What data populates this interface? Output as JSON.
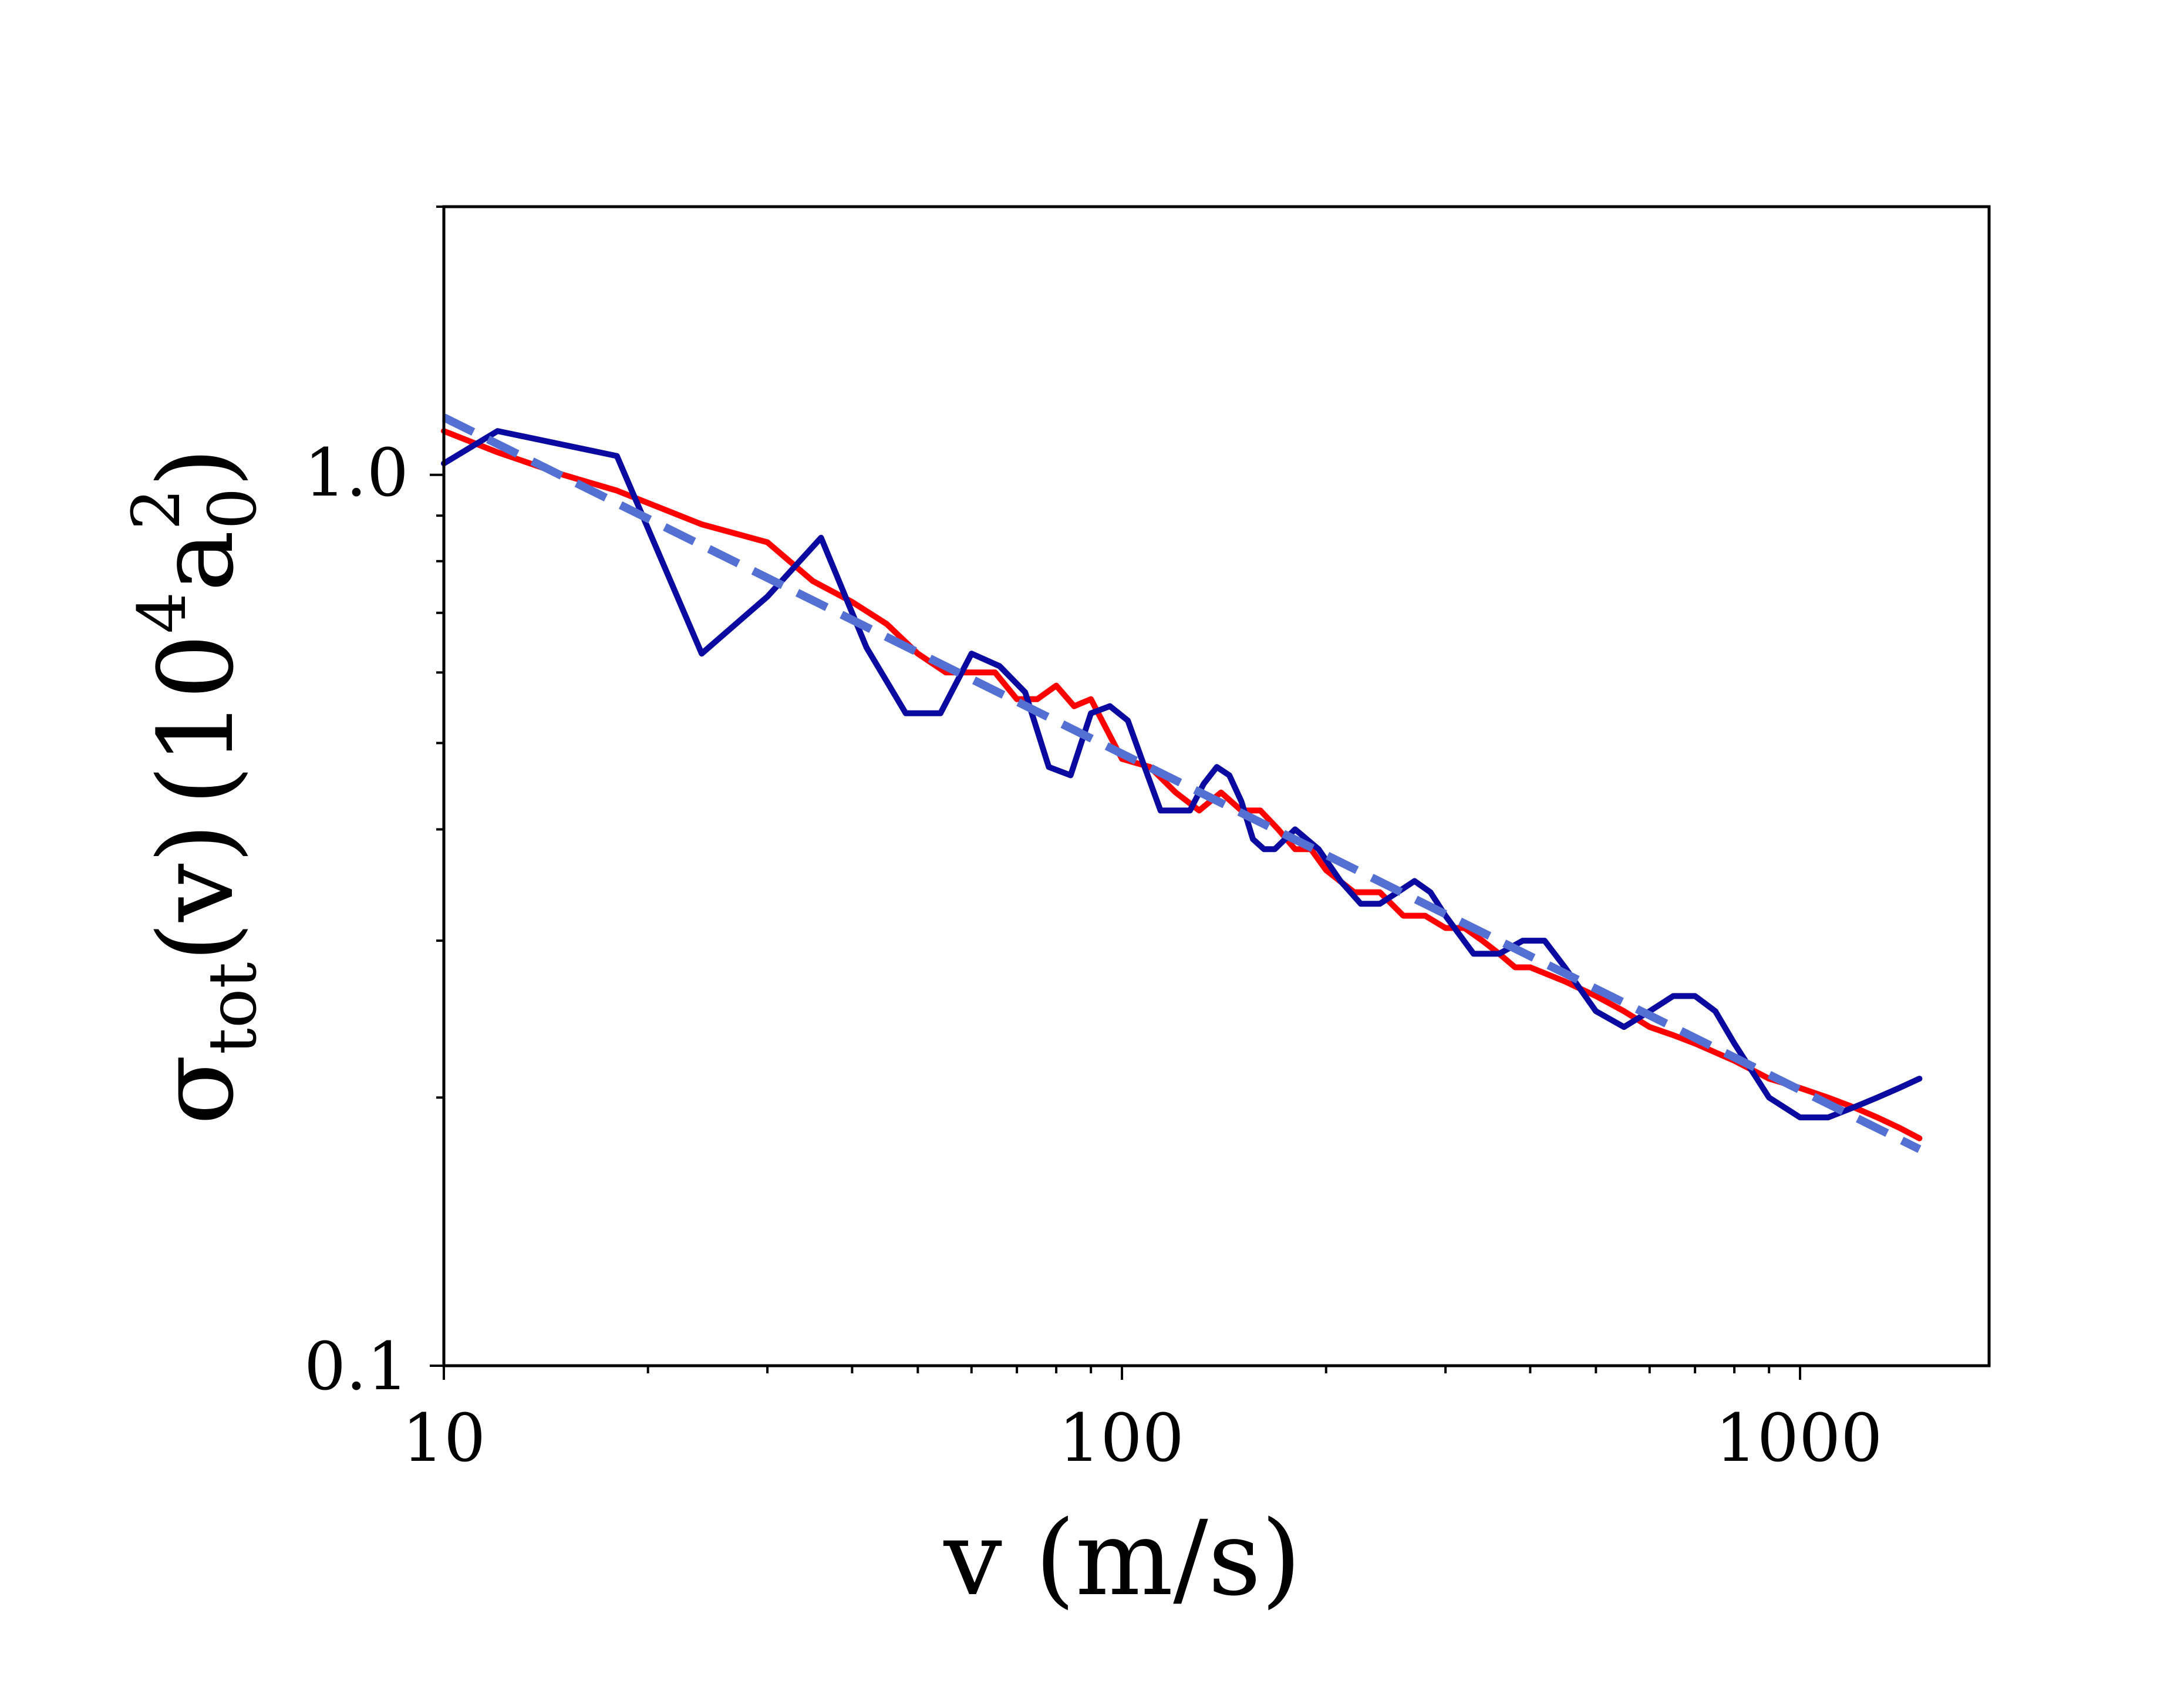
{
  "chart_data": {
    "type": "line",
    "title": "",
    "xlabel": "v (m/s)",
    "ylabel": {
      "main": "σ",
      "sub": "tot",
      "arg": "(v)",
      "unit_open": "(",
      "unit_base": "10",
      "unit_exp": "4",
      "unit_symbol": "a",
      "unit_symbol_sub": "0",
      "unit_symbol_sup": "2",
      "unit_close": ")"
    },
    "xscale": "log",
    "yscale": "log",
    "xlim": [
      10,
      1900
    ],
    "ylim": [
      0.1,
      2.0
    ],
    "xticks": [
      {
        "value": 10,
        "label": "10"
      },
      {
        "value": 100,
        "label": "100"
      },
      {
        "value": 1000,
        "label": "1000"
      }
    ],
    "yticks": [
      {
        "value": 0.1,
        "label": "0.1"
      },
      {
        "value": 1.0,
        "label": "1.0"
      }
    ],
    "colors": {
      "red": "#ff0000",
      "blue": "#0a0aa0",
      "dashed": "#5470d2"
    },
    "series": [
      {
        "name": "red-series",
        "color": "#ff0000",
        "dash": false,
        "x": [
          10,
          12,
          15,
          18,
          20,
          24,
          30,
          35,
          40,
          45,
          50,
          55,
          60,
          65,
          70,
          75,
          80,
          85,
          90,
          100,
          110,
          120,
          130,
          140,
          150,
          160,
          170,
          180,
          190,
          200,
          220,
          240,
          260,
          280,
          300,
          320,
          340,
          360,
          380,
          400,
          450,
          500,
          550,
          600,
          650,
          700,
          800,
          900,
          1000,
          1100,
          1200,
          1300,
          1400,
          1500
        ],
        "y": [
          1.12,
          1.06,
          1.0,
          0.96,
          0.93,
          0.88,
          0.84,
          0.76,
          0.72,
          0.68,
          0.63,
          0.6,
          0.6,
          0.6,
          0.56,
          0.56,
          0.58,
          0.55,
          0.56,
          0.48,
          0.47,
          0.44,
          0.42,
          0.44,
          0.42,
          0.42,
          0.4,
          0.38,
          0.38,
          0.36,
          0.34,
          0.34,
          0.32,
          0.32,
          0.31,
          0.31,
          0.3,
          0.29,
          0.28,
          0.28,
          0.27,
          0.26,
          0.25,
          0.24,
          0.235,
          0.23,
          0.22,
          0.21,
          0.205,
          0.2,
          0.195,
          0.19,
          0.185,
          0.18
        ]
      },
      {
        "name": "blue-series",
        "color": "#0a0aa0",
        "dash": false,
        "x": [
          10,
          12,
          18,
          24,
          30,
          36,
          42,
          48,
          54,
          60,
          66,
          72,
          78,
          84,
          90,
          96,
          102,
          108,
          114,
          120,
          126,
          132,
          138,
          144,
          150,
          156,
          162,
          168,
          174,
          180,
          195,
          210,
          225,
          240,
          255,
          270,
          285,
          300,
          330,
          360,
          390,
          420,
          450,
          500,
          550,
          600,
          650,
          700,
          750,
          800,
          900,
          1000,
          1100,
          1200,
          1300,
          1400,
          1500
        ],
        "y": [
          1.03,
          1.12,
          1.05,
          0.63,
          0.73,
          0.85,
          0.64,
          0.54,
          0.54,
          0.63,
          0.61,
          0.57,
          0.47,
          0.46,
          0.54,
          0.55,
          0.53,
          0.47,
          0.42,
          0.42,
          0.42,
          0.45,
          0.47,
          0.46,
          0.43,
          0.39,
          0.38,
          0.38,
          0.39,
          0.4,
          0.38,
          0.35,
          0.33,
          0.33,
          0.34,
          0.35,
          0.34,
          0.32,
          0.29,
          0.29,
          0.3,
          0.3,
          0.28,
          0.25,
          0.24,
          0.25,
          0.26,
          0.26,
          0.25,
          0.23,
          0.2,
          0.19,
          0.19,
          0.195,
          0.2,
          0.205,
          0.21
        ]
      },
      {
        "name": "dashed-fit",
        "color": "#5470d2",
        "dash": true,
        "x": [
          10,
          1500
        ],
        "y": [
          1.16,
          0.175
        ]
      }
    ]
  }
}
